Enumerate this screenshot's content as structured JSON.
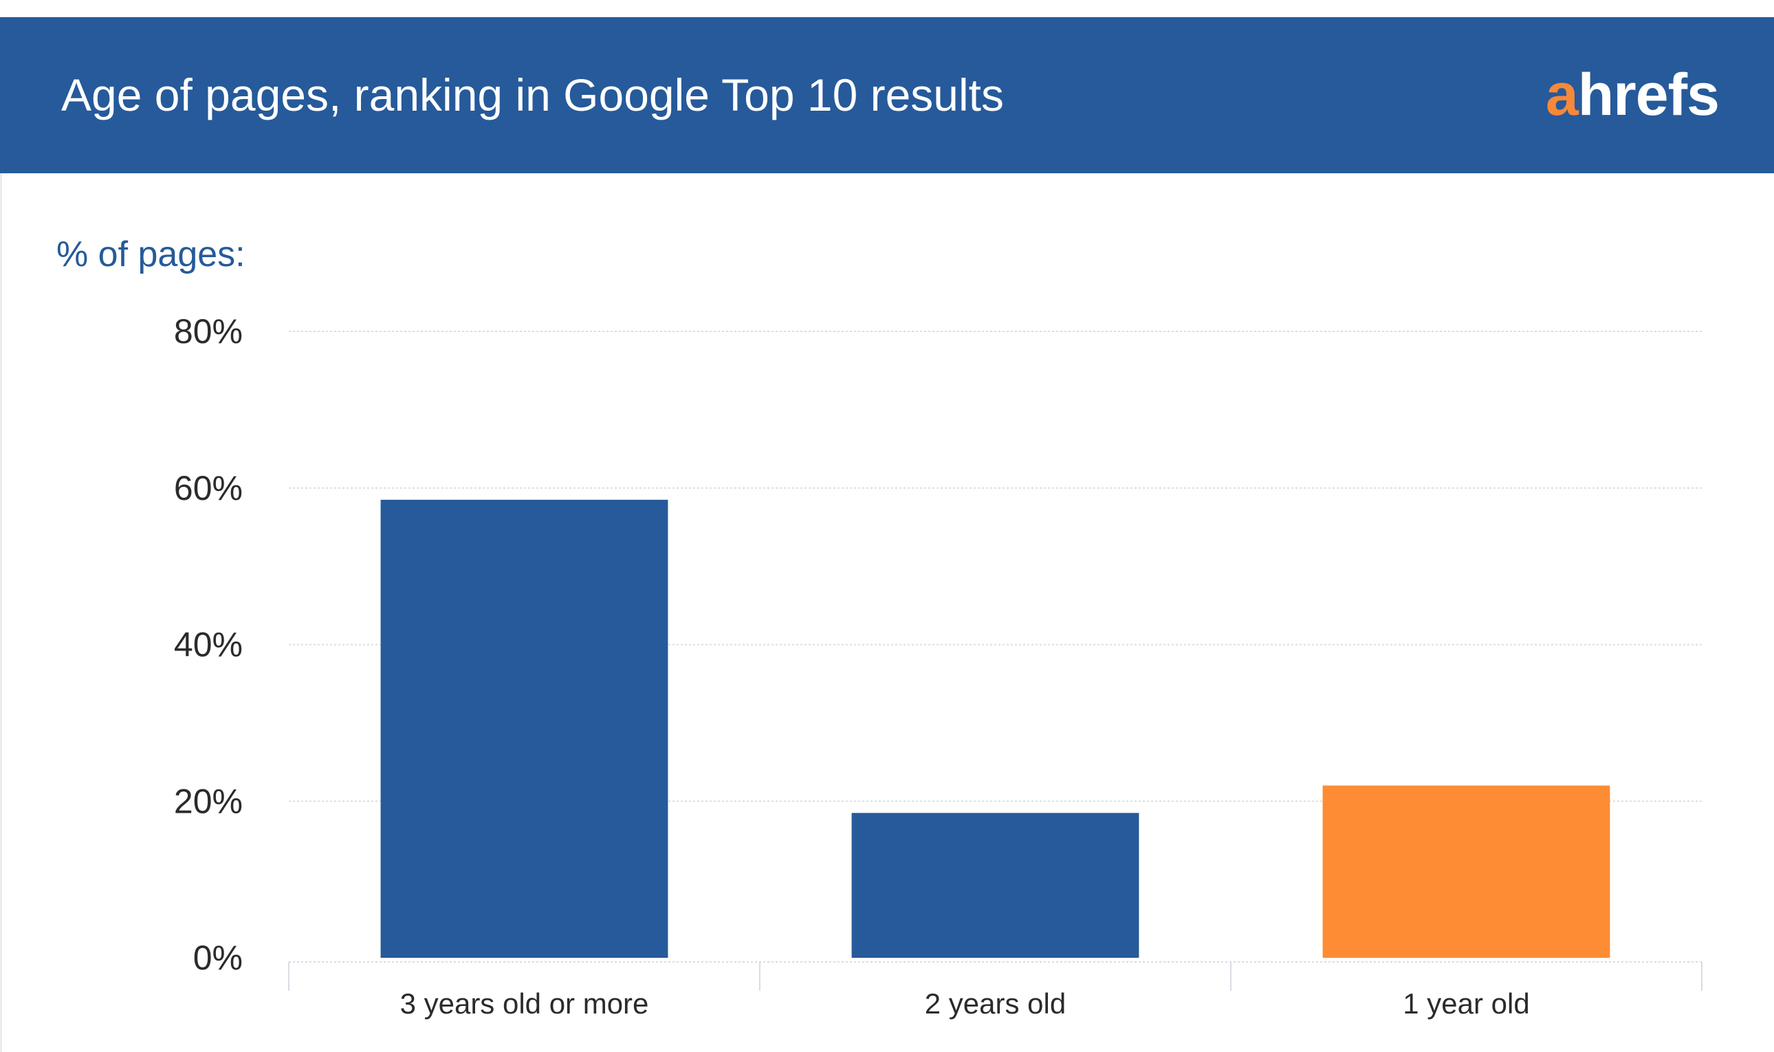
{
  "header": {
    "title": "Age of pages, ranking in Google Top 10 results",
    "brand_a": "a",
    "brand_rest": "hrefs"
  },
  "colors": {
    "header_bg": "#265a9a",
    "brand_accent": "#f6883a",
    "bar_primary": "#265a9a",
    "bar_highlight": "#fd8c35"
  },
  "chart_data": {
    "type": "bar",
    "title": "Age of pages, ranking in Google Top 10 results",
    "ylabel": "% of pages:",
    "xlabel": "",
    "categories": [
      "3 years old or more",
      "2 years old",
      "1 year old"
    ],
    "values": [
      58.5,
      18.5,
      22
    ],
    "bar_colors": [
      "#265a9a",
      "#265a9a",
      "#fd8c35"
    ],
    "ylim": [
      0,
      80
    ],
    "yticks": [
      0,
      20,
      40,
      60,
      80
    ],
    "ytick_labels": [
      "0%",
      "20%",
      "40%",
      "60%",
      "80%"
    ],
    "grid": true,
    "legend": "none"
  }
}
